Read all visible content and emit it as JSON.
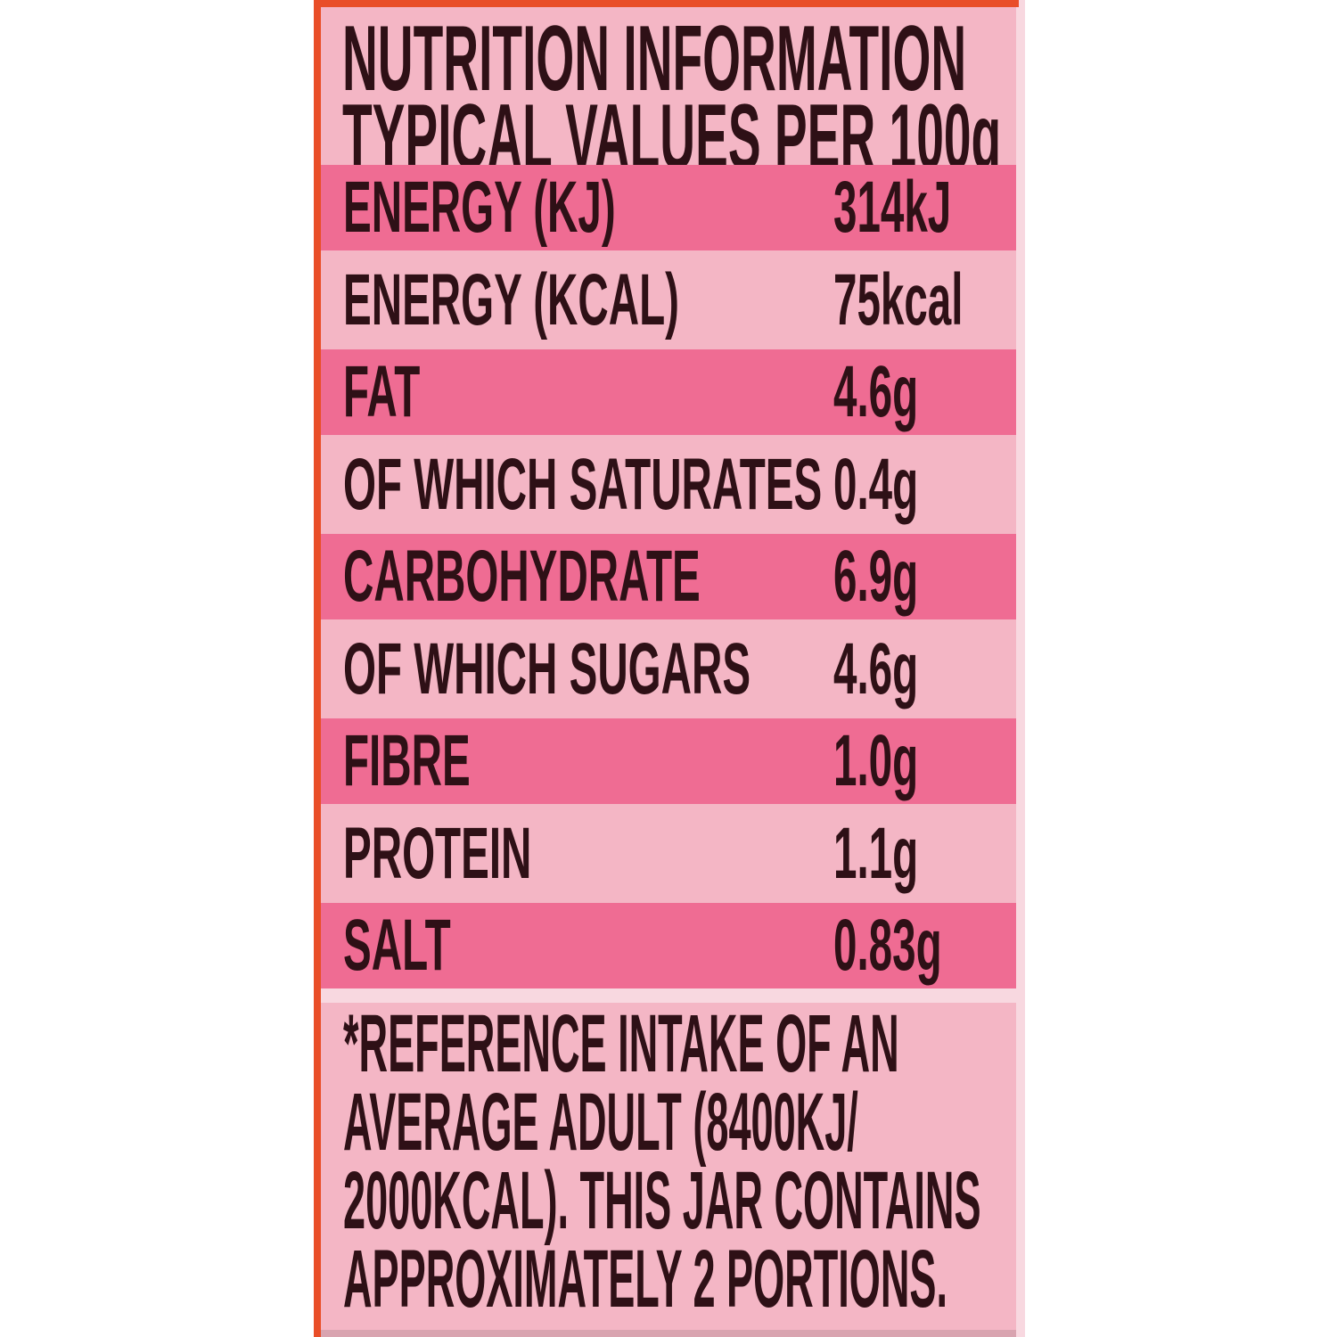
{
  "nutrition_label": {
    "title_line1": "NUTRITION INFORMATION",
    "title_line2": "TYPICAL VALUES PER 100g",
    "rows": [
      {
        "name": "ENERGY (KJ)",
        "value": "314kJ",
        "variant": "dark"
      },
      {
        "name": "ENERGY (KCAL)",
        "value": "75kcal",
        "variant": "light"
      },
      {
        "name": "FAT",
        "value": "4.6g",
        "variant": "dark"
      },
      {
        "name": "OF WHICH SATURATES",
        "value": "0.4g",
        "variant": "light"
      },
      {
        "name": "CARBOHYDRATE",
        "value": "6.9g",
        "variant": "dark"
      },
      {
        "name": "OF WHICH SUGARS",
        "value": "4.6g",
        "variant": "light"
      },
      {
        "name": "FIBRE",
        "value": "1.0g",
        "variant": "dark"
      },
      {
        "name": "PROTEIN",
        "value": "1.1g",
        "variant": "light"
      },
      {
        "name": "SALT",
        "value": "0.83g",
        "variant": "dark"
      }
    ],
    "footnote_lines": [
      "*REFERENCE INTAKE OF AN",
      "AVERAGE ADULT (8400KJ/",
      "2000KCAL). THIS JAR CONTAINS",
      "APPROXIMATELY 2 PORTIONS."
    ],
    "colors": {
      "border_red": "#e94e28",
      "row_dark_pink": "#ef6c93",
      "row_light_pink": "#f4b6c5",
      "label_background_pink": "#f8d8e0",
      "text_dark": "#2e1016"
    }
  }
}
